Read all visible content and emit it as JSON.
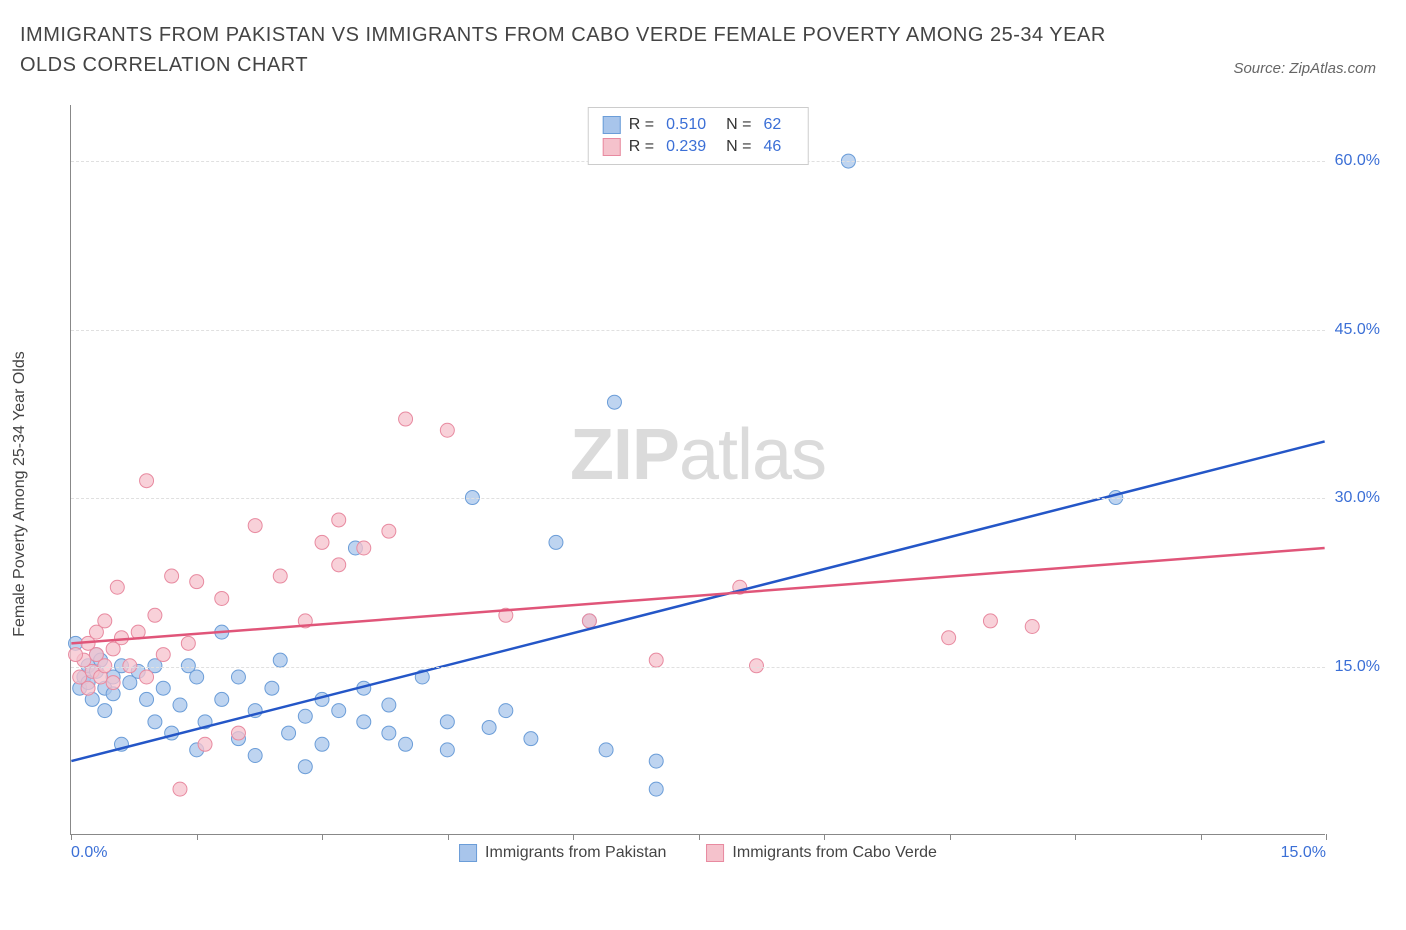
{
  "title": "IMMIGRANTS FROM PAKISTAN VS IMMIGRANTS FROM CABO VERDE FEMALE POVERTY AMONG 25-34 YEAR OLDS CORRELATION CHART",
  "source": "Source: ZipAtlas.com",
  "y_axis_label": "Female Poverty Among 25-34 Year Olds",
  "watermark_bold": "ZIP",
  "watermark_light": "atlas",
  "chart": {
    "type": "scatter",
    "xlim": [
      0,
      15
    ],
    "ylim": [
      0,
      65
    ],
    "x_ticks": [
      0,
      1.5,
      3,
      4.5,
      6,
      7.5,
      9,
      10.5,
      12,
      13.5,
      15
    ],
    "x_tick_labels": {
      "0": "0.0%",
      "15": "15.0%"
    },
    "y_ticks": [
      15,
      30,
      45,
      60
    ],
    "y_tick_labels": [
      "15.0%",
      "30.0%",
      "45.0%",
      "60.0%"
    ],
    "background_color": "#ffffff",
    "grid_color": "#e0e0e0",
    "axis_color": "#888888",
    "series": [
      {
        "name": "Immigrants from Pakistan",
        "color_fill": "#a8c5eb",
        "color_stroke": "#6b9dd8",
        "line_color": "#2456c7",
        "r_value": "0.510",
        "n_value": "62",
        "trend": {
          "x1": 0,
          "y1": 6.5,
          "x2": 15,
          "y2": 35
        },
        "points": [
          [
            0.1,
            13
          ],
          [
            0.15,
            14
          ],
          [
            0.2,
            15
          ],
          [
            0.2,
            13.5
          ],
          [
            0.25,
            12
          ],
          [
            0.3,
            16
          ],
          [
            0.3,
            14.5
          ],
          [
            0.35,
            15.5
          ],
          [
            0.4,
            13
          ],
          [
            0.4,
            11
          ],
          [
            0.5,
            14
          ],
          [
            0.5,
            12.5
          ],
          [
            0.6,
            15
          ],
          [
            0.6,
            8
          ],
          [
            0.7,
            13.5
          ],
          [
            0.8,
            14.5
          ],
          [
            0.9,
            12
          ],
          [
            1.0,
            15
          ],
          [
            1.0,
            10
          ],
          [
            1.1,
            13
          ],
          [
            1.2,
            9
          ],
          [
            1.3,
            11.5
          ],
          [
            1.4,
            15
          ],
          [
            1.5,
            7.5
          ],
          [
            1.5,
            14
          ],
          [
            1.6,
            10
          ],
          [
            1.8,
            18
          ],
          [
            1.8,
            12
          ],
          [
            2.0,
            14
          ],
          [
            2.0,
            8.5
          ],
          [
            2.2,
            11
          ],
          [
            2.2,
            7
          ],
          [
            2.4,
            13
          ],
          [
            2.5,
            15.5
          ],
          [
            2.6,
            9
          ],
          [
            2.8,
            10.5
          ],
          [
            2.8,
            6
          ],
          [
            3.0,
            12
          ],
          [
            3.0,
            8
          ],
          [
            3.2,
            11
          ],
          [
            3.4,
            25.5
          ],
          [
            3.5,
            10
          ],
          [
            3.5,
            13
          ],
          [
            3.8,
            9
          ],
          [
            3.8,
            11.5
          ],
          [
            4.0,
            8
          ],
          [
            4.2,
            14
          ],
          [
            4.5,
            10
          ],
          [
            4.5,
            7.5
          ],
          [
            4.8,
            30
          ],
          [
            5.0,
            9.5
          ],
          [
            5.2,
            11
          ],
          [
            5.5,
            8.5
          ],
          [
            5.8,
            26
          ],
          [
            6.2,
            19
          ],
          [
            6.4,
            7.5
          ],
          [
            6.5,
            38.5
          ],
          [
            7.0,
            4
          ],
          [
            7.0,
            6.5
          ],
          [
            9.3,
            60
          ],
          [
            12.5,
            30
          ],
          [
            0.05,
            17
          ]
        ]
      },
      {
        "name": "Immigrants from Cabo Verde",
        "color_fill": "#f5c2cc",
        "color_stroke": "#e88aa0",
        "line_color": "#e05579",
        "r_value": "0.239",
        "n_value": "46",
        "trend": {
          "x1": 0,
          "y1": 17,
          "x2": 15,
          "y2": 25.5
        },
        "points": [
          [
            0.1,
            14
          ],
          [
            0.15,
            15.5
          ],
          [
            0.2,
            13
          ],
          [
            0.2,
            17
          ],
          [
            0.25,
            14.5
          ],
          [
            0.3,
            16
          ],
          [
            0.3,
            18
          ],
          [
            0.35,
            14
          ],
          [
            0.4,
            19
          ],
          [
            0.4,
            15
          ],
          [
            0.5,
            16.5
          ],
          [
            0.5,
            13.5
          ],
          [
            0.6,
            17.5
          ],
          [
            0.55,
            22
          ],
          [
            0.7,
            15
          ],
          [
            0.8,
            18
          ],
          [
            0.9,
            14
          ],
          [
            0.9,
            31.5
          ],
          [
            1.0,
            19.5
          ],
          [
            1.1,
            16
          ],
          [
            1.2,
            23
          ],
          [
            1.3,
            4
          ],
          [
            1.4,
            17
          ],
          [
            1.5,
            22.5
          ],
          [
            1.6,
            8
          ],
          [
            1.8,
            21
          ],
          [
            2.0,
            9
          ],
          [
            2.2,
            27.5
          ],
          [
            2.5,
            23
          ],
          [
            2.8,
            19
          ],
          [
            3.0,
            26
          ],
          [
            3.2,
            28
          ],
          [
            3.2,
            24
          ],
          [
            3.5,
            25.5
          ],
          [
            3.8,
            27
          ],
          [
            4.0,
            37
          ],
          [
            4.5,
            36
          ],
          [
            5.2,
            19.5
          ],
          [
            6.2,
            19
          ],
          [
            7.0,
            15.5
          ],
          [
            8.0,
            22
          ],
          [
            8.2,
            15
          ],
          [
            10.5,
            17.5
          ],
          [
            11.0,
            19
          ],
          [
            11.5,
            18.5
          ],
          [
            0.05,
            16
          ]
        ]
      }
    ]
  },
  "legend_top": {
    "r_label": "R =",
    "n_label": "N ="
  }
}
